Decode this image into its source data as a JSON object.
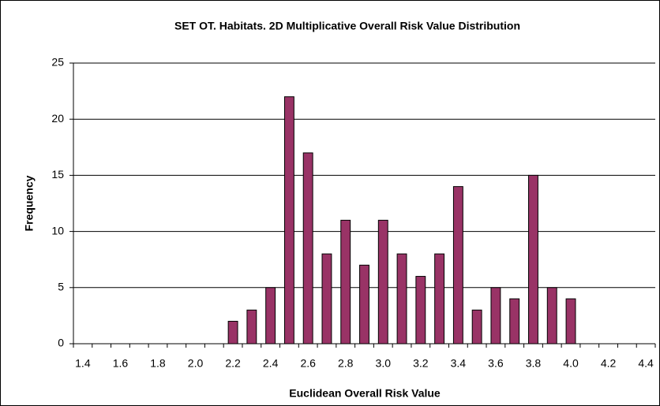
{
  "chart_data": {
    "type": "bar",
    "title": "SET OT. Habitats. 2D Multiplicative Overall Risk Value Distribution",
    "x_label": "Euclidean Overall Risk Value",
    "y_label": "Frequency",
    "categories": [
      "1.4",
      null,
      "1.6",
      null,
      "1.8",
      null,
      "2.0",
      null,
      "2.2",
      null,
      "2.4",
      null,
      "2.6",
      null,
      "2.8",
      null,
      "3.0",
      null,
      "3.2",
      null,
      "3.4",
      null,
      "3.6",
      null,
      "3.8",
      null,
      "4.0",
      null,
      "4.2",
      null,
      "4.4"
    ],
    "values": [
      0,
      0,
      0,
      0,
      0,
      0,
      0,
      0,
      2,
      3,
      5,
      22,
      17,
      8,
      11,
      7,
      11,
      8,
      6,
      8,
      14,
      3,
      5,
      4,
      15,
      5,
      4,
      0,
      0,
      0,
      0
    ],
    "color": "#993366",
    "ylim": [
      0,
      25
    ],
    "yticks": [
      0,
      5,
      10,
      15,
      20,
      25
    ],
    "grid": true
  }
}
